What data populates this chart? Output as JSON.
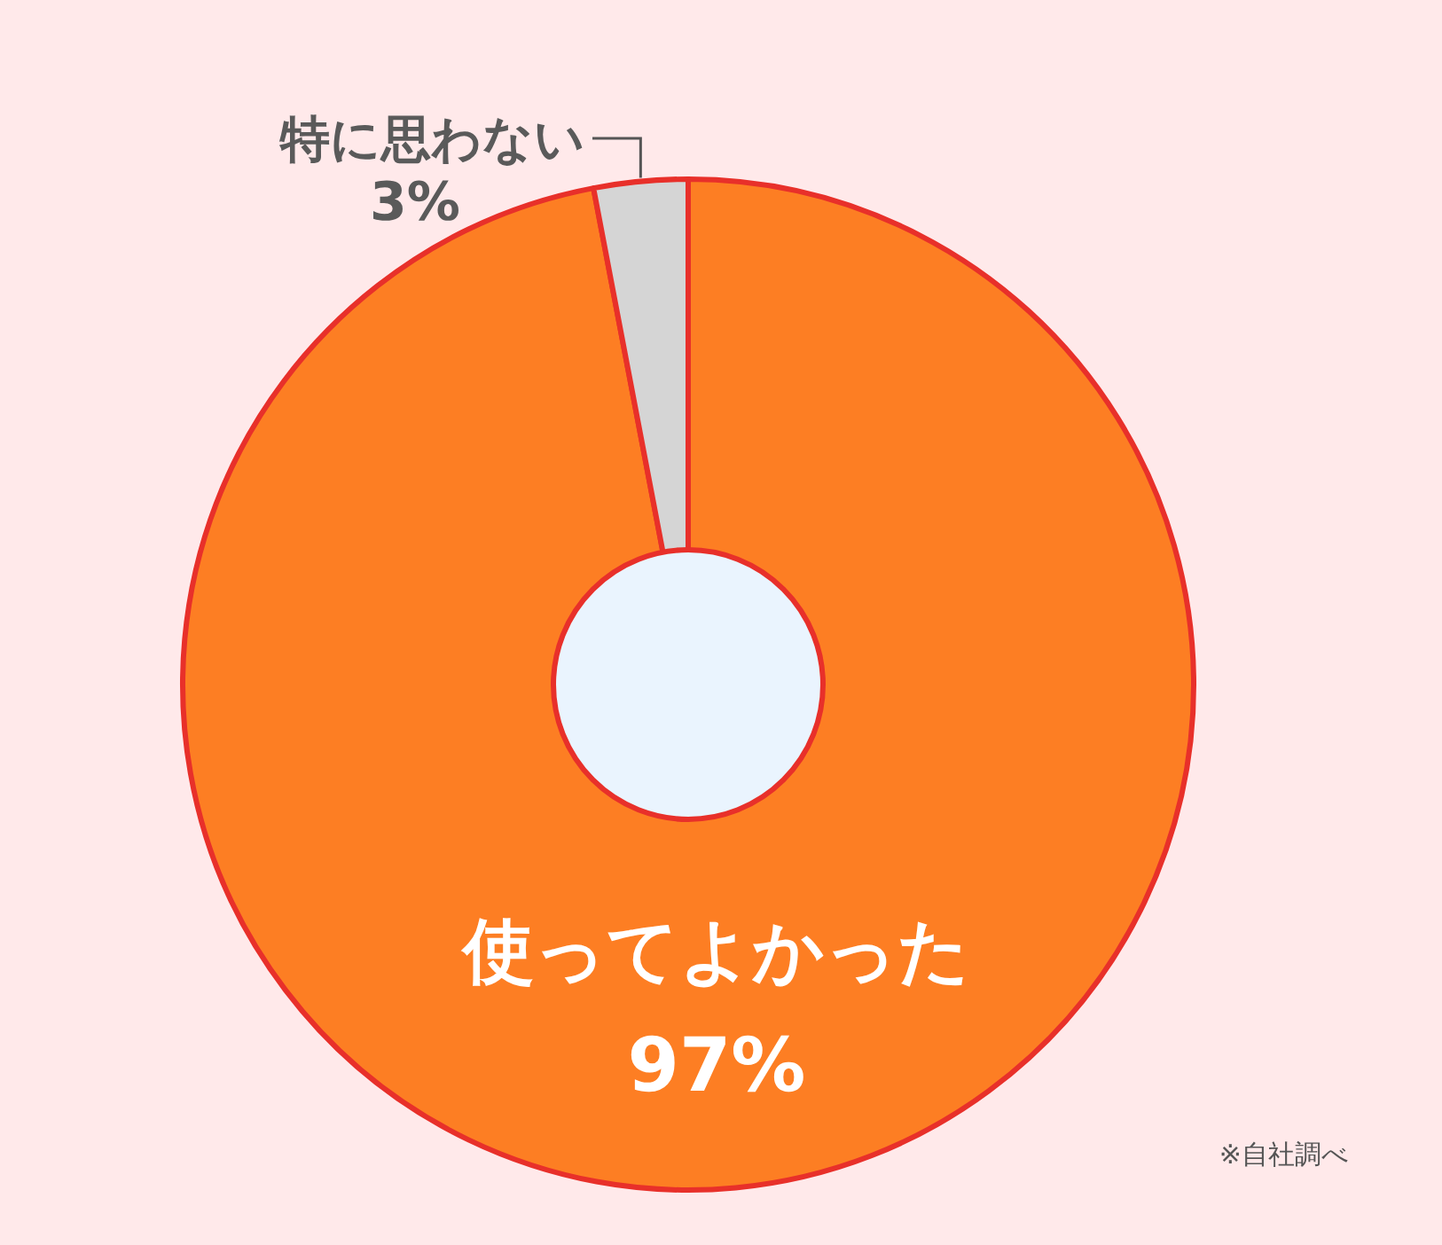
{
  "chart_data": {
    "type": "donut",
    "categories": [
      "使ってよかった",
      "特に思わない"
    ],
    "values": [
      97,
      3
    ],
    "colors": [
      "#fd7e23",
      "#d5d5d5"
    ],
    "value_labels": [
      "97%",
      "3%"
    ],
    "annotations": [
      "※自社調べ"
    ]
  }
}
